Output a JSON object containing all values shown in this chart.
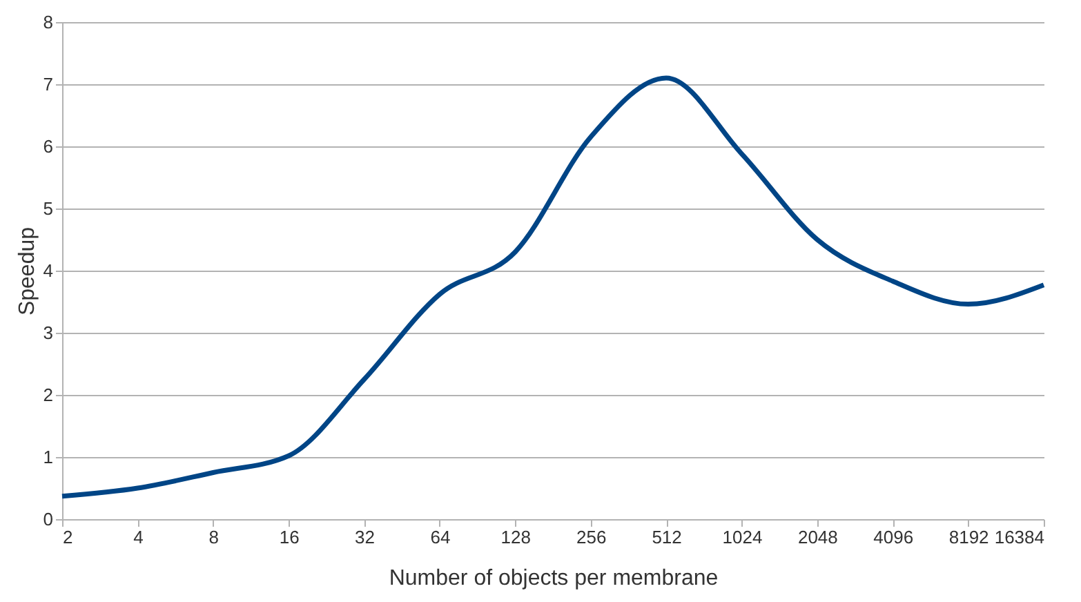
{
  "chart_data": {
    "type": "line",
    "xlabel": "Number of objects per membrane",
    "ylabel": "Speedup",
    "categories": [
      "2",
      "4",
      "8",
      "16",
      "32",
      "64",
      "128",
      "256",
      "512",
      "1024",
      "2048",
      "4096",
      "8192",
      "16384"
    ],
    "series": [
      {
        "color": "#004586",
        "values": [
          0.37,
          0.5,
          0.75,
          1.02,
          2.25,
          3.62,
          4.3,
          6.15,
          7.1,
          5.88,
          4.5,
          3.83,
          3.46,
          3.77
        ]
      }
    ],
    "ylim": [
      0,
      8
    ],
    "yticks": [
      0,
      1,
      2,
      3,
      4,
      5,
      6,
      7,
      8
    ],
    "grid": "y",
    "marker": "none",
    "line_style": "solid"
  }
}
